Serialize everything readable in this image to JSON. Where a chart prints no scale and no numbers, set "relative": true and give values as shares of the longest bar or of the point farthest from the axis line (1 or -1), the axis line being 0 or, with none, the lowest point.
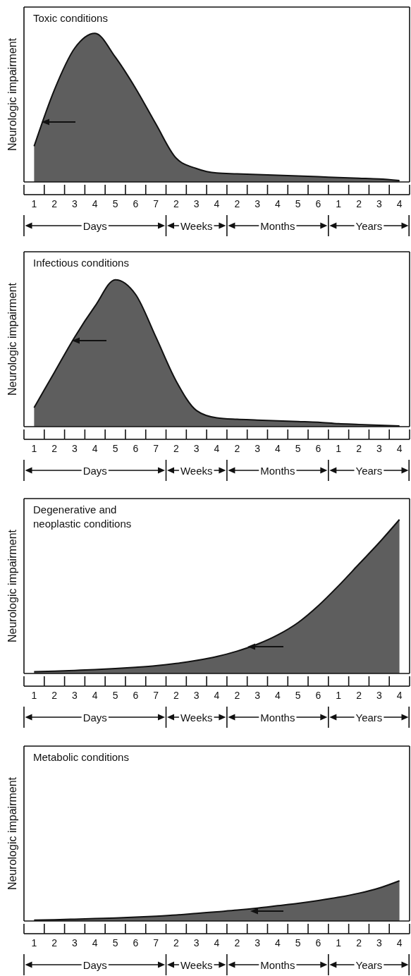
{
  "chart_data": [
    {
      "type": "area",
      "title": "Toxic conditions",
      "ylabel": "Neurologic impairment",
      "relative": true,
      "color": "#5e5e5e",
      "categories": [
        "1",
        "2",
        "3",
        "4",
        "5",
        "6",
        "7",
        "2",
        "3",
        "4",
        "2",
        "3",
        "4",
        "5",
        "6",
        "1",
        "2",
        "3",
        "4"
      ],
      "values": [
        0.24,
        0.62,
        0.9,
        1,
        0.84,
        0.63,
        0.39,
        0.16,
        0.09,
        0.06,
        0.055,
        0.05,
        0.045,
        0.04,
        0.035,
        0.03,
        0.025,
        0.02,
        0.01
      ],
      "annotations": [
        "Days",
        "Weeks",
        "Months",
        "Years"
      ]
    },
    {
      "type": "area",
      "title": "Infectious conditions",
      "ylabel": "Neurologic impairment",
      "relative": true,
      "color": "#5e5e5e",
      "categories": [
        "1",
        "2",
        "3",
        "4",
        "5",
        "6",
        "7",
        "2",
        "3",
        "4",
        "2",
        "3",
        "4",
        "5",
        "6",
        "1",
        "2",
        "3",
        "4"
      ],
      "values": [
        0.13,
        0.37,
        0.61,
        0.82,
        1,
        0.9,
        0.61,
        0.31,
        0.11,
        0.06,
        0.05,
        0.045,
        0.04,
        0.035,
        0.03,
        0.02,
        0.015,
        0.01,
        0.005
      ],
      "annotations": [
        "Days",
        "Weeks",
        "Months",
        "Years"
      ]
    },
    {
      "type": "area",
      "title": "Degenerative and neoplastic conditions",
      "ylabel": "Neurologic impairment",
      "relative": true,
      "color": "#5e5e5e",
      "categories": [
        "1",
        "2",
        "3",
        "4",
        "5",
        "6",
        "7",
        "2",
        "3",
        "4",
        "2",
        "3",
        "4",
        "5",
        "6",
        "1",
        "2",
        "3",
        "4"
      ],
      "values": [
        0.012,
        0.015,
        0.02,
        0.025,
        0.032,
        0.04,
        0.05,
        0.065,
        0.085,
        0.11,
        0.145,
        0.19,
        0.25,
        0.33,
        0.44,
        0.57,
        0.71,
        0.85,
        1
      ],
      "annotations": [
        "Days",
        "Weeks",
        "Months",
        "Years"
      ]
    },
    {
      "type": "area",
      "title": "Metabolic conditions",
      "ylabel": "Neurologic impairment",
      "relative": true,
      "color": "#5e5e5e",
      "categories": [
        "1",
        "2",
        "3",
        "4",
        "5",
        "6",
        "7",
        "2",
        "3",
        "4",
        "2",
        "3",
        "4",
        "5",
        "6",
        "1",
        "2",
        "3",
        "4"
      ],
      "values": [
        0.02,
        0.03,
        0.045,
        0.06,
        0.075,
        0.095,
        0.12,
        0.15,
        0.19,
        0.23,
        0.27,
        0.32,
        0.38,
        0.44,
        0.51,
        0.59,
        0.69,
        0.82,
        1
      ],
      "annotations": [
        "Days",
        "Weeks",
        "Months",
        "Years"
      ]
    }
  ]
}
